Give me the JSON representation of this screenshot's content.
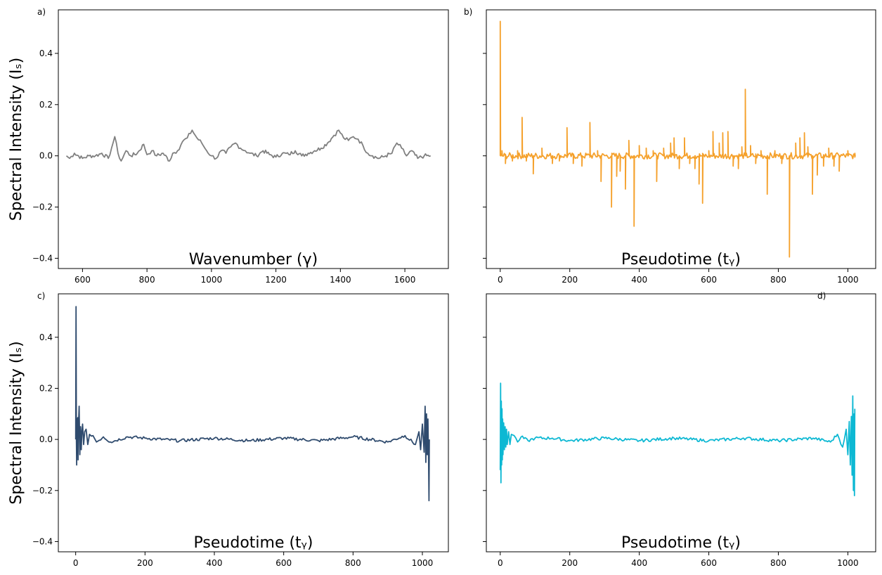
{
  "chart_data": [
    {
      "panel_label": "a)",
      "type": "line",
      "xlabel": "Wavenumber (γ)",
      "ylabel": "Spectral Intensity (Iₛ)",
      "xlim": [
        525,
        1735
      ],
      "ylim": [
        -0.44,
        0.57
      ],
      "xticks": [
        600,
        800,
        1000,
        1200,
        1400,
        1600
      ],
      "yticks": [
        -0.4,
        -0.2,
        0.0,
        0.2,
        0.4
      ],
      "series": [
        {
          "color": "#808080",
          "x": [
            550,
            560,
            575,
            600,
            620,
            640,
            660,
            680,
            690,
            700,
            710,
            720,
            735,
            750,
            770,
            790,
            800,
            815,
            830,
            850,
            870,
            880,
            895,
            910,
            925,
            940,
            955,
            970,
            985,
            1000,
            1015,
            1030,
            1045,
            1060,
            1075,
            1090,
            1105,
            1120,
            1140,
            1160,
            1180,
            1200,
            1220,
            1240,
            1260,
            1280,
            1300,
            1320,
            1340,
            1360,
            1380,
            1395,
            1410,
            1425,
            1440,
            1455,
            1470,
            1485,
            1500,
            1520,
            1540,
            1560,
            1575,
            1590,
            1605,
            1620,
            1640,
            1660,
            1680
          ],
          "y": [
            0.0,
            -0.01,
            0.01,
            -0.01,
            0.0,
            0.0,
            0.01,
            -0.01,
            0.03,
            0.075,
            0.01,
            -0.02,
            0.02,
            0.0,
            0.01,
            0.045,
            0.005,
            0.02,
            0.0,
            0.01,
            -0.02,
            0.01,
            0.02,
            0.055,
            0.07,
            0.1,
            0.07,
            0.05,
            0.02,
            0.0,
            -0.01,
            0.02,
            0.01,
            0.035,
            0.05,
            0.03,
            0.02,
            0.01,
            0.0,
            0.02,
            0.005,
            -0.005,
            0.01,
            0.005,
            0.02,
            0.0,
            0.01,
            0.02,
            0.03,
            0.05,
            0.08,
            0.1,
            0.07,
            0.06,
            0.075,
            0.065,
            0.04,
            0.01,
            0.0,
            -0.01,
            0.0,
            0.01,
            0.05,
            0.03,
            0.0,
            0.02,
            -0.01,
            0.0,
            0.0
          ]
        }
      ]
    },
    {
      "panel_label": "b)",
      "type": "line",
      "xlabel": "Pseudotime (tᵧ)",
      "ylabel": "",
      "xlim": [
        -40,
        1080
      ],
      "ylim": [
        -0.44,
        0.57
      ],
      "xticks": [
        0,
        200,
        400,
        600,
        800,
        1000
      ],
      "yticks": [
        -0.4,
        -0.2,
        0.0,
        0.2,
        0.4
      ],
      "series": [
        {
          "color": "#f5a12c",
          "baseline": [
            0.0,
            0.012
          ],
          "spikes": [
            [
              0,
              0.525
            ],
            [
              5,
              0.02
            ],
            [
              15,
              -0.03
            ],
            [
              35,
              -0.02
            ],
            [
              50,
              0.02
            ],
            [
              63,
              0.15
            ],
            [
              75,
              -0.02
            ],
            [
              95,
              -0.07
            ],
            [
              120,
              0.03
            ],
            [
              150,
              -0.03
            ],
            [
              170,
              -0.02
            ],
            [
              192,
              0.11
            ],
            [
              210,
              -0.03
            ],
            [
              235,
              -0.04
            ],
            [
              258,
              0.13
            ],
            [
              280,
              0.02
            ],
            [
              290,
              -0.1
            ],
            [
              320,
              -0.2
            ],
            [
              335,
              -0.08
            ],
            [
              345,
              -0.06
            ],
            [
              360,
              -0.13
            ],
            [
              370,
              0.06
            ],
            [
              385,
              -0.275
            ],
            [
              400,
              0.04
            ],
            [
              420,
              0.03
            ],
            [
              440,
              0.02
            ],
            [
              450,
              -0.1
            ],
            [
              470,
              0.03
            ],
            [
              490,
              0.05
            ],
            [
              500,
              0.07
            ],
            [
              515,
              -0.05
            ],
            [
              530,
              0.07
            ],
            [
              545,
              -0.03
            ],
            [
              560,
              -0.05
            ],
            [
              572,
              -0.11
            ],
            [
              582,
              -0.185
            ],
            [
              600,
              0.02
            ],
            [
              612,
              0.095
            ],
            [
              630,
              0.05
            ],
            [
              640,
              0.09
            ],
            [
              655,
              0.095
            ],
            [
              670,
              -0.04
            ],
            [
              685,
              -0.05
            ],
            [
              695,
              0.035
            ],
            [
              705,
              0.26
            ],
            [
              720,
              0.04
            ],
            [
              735,
              -0.03
            ],
            [
              750,
              0.02
            ],
            [
              768,
              -0.15
            ],
            [
              790,
              0.02
            ],
            [
              810,
              -0.03
            ],
            [
              832,
              -0.395
            ],
            [
              850,
              0.05
            ],
            [
              862,
              0.07
            ],
            [
              875,
              0.09
            ],
            [
              885,
              0.035
            ],
            [
              898,
              -0.15
            ],
            [
              912,
              -0.075
            ],
            [
              930,
              -0.04
            ],
            [
              945,
              0.03
            ],
            [
              960,
              -0.04
            ],
            [
              975,
              -0.06
            ],
            [
              1000,
              0.02
            ],
            [
              1020,
              -0.005
            ]
          ]
        }
      ]
    },
    {
      "panel_label": "c)",
      "type": "line",
      "xlabel": "Pseudotime (tᵧ)",
      "ylabel": "Spectral Intensity (Iₛ)",
      "xlim": [
        -50,
        1075
      ],
      "ylim": [
        -0.44,
        0.57
      ],
      "xticks": [
        0,
        200,
        400,
        600,
        800,
        1000
      ],
      "yticks": [
        -0.4,
        -0.2,
        0.0,
        0.2,
        0.4
      ],
      "series": [
        {
          "color": "#2f4b6e",
          "x": [
            0,
            1,
            2,
            3,
            4,
            5,
            6,
            7,
            8,
            10,
            12,
            14,
            16,
            18,
            20,
            23,
            26,
            30,
            35,
            40,
            50,
            60,
            80,
            100,
            150,
            200,
            300,
            400,
            500,
            600,
            700,
            800,
            900,
            950,
            980,
            990,
            995,
            1000,
            1005,
            1008,
            1010,
            1012,
            1014,
            1016,
            1018,
            1019,
            1020
          ],
          "y": [
            0.0,
            0.52,
            0.0,
            -0.1,
            0.08,
            -0.05,
            0.085,
            -0.08,
            0.05,
            0.13,
            -0.06,
            0.05,
            -0.04,
            0.03,
            0.06,
            -0.02,
            0.03,
            0.04,
            -0.02,
            0.02,
            0.015,
            -0.01,
            0.01,
            -0.01,
            0.01,
            0.005,
            -0.005,
            0.005,
            -0.005,
            0.005,
            -0.005,
            0.01,
            -0.01,
            0.015,
            -0.02,
            0.03,
            -0.04,
            0.06,
            -0.05,
            0.13,
            -0.09,
            0.1,
            -0.06,
            0.08,
            -0.1,
            -0.24,
            0.0
          ]
        }
      ]
    },
    {
      "panel_label": "d)",
      "type": "line",
      "xlabel": "Pseudotime (tᵧ)",
      "ylabel": "",
      "xlim": [
        -40,
        1080
      ],
      "ylim": [
        -0.44,
        0.57
      ],
      "xticks": [
        0,
        200,
        400,
        600,
        800,
        1000
      ],
      "yticks": [
        -0.4,
        -0.2,
        0.0,
        0.2,
        0.4
      ],
      "series": [
        {
          "color": "#0db8d3",
          "x": [
            0,
            1,
            2,
            3,
            4,
            5,
            6,
            7,
            8,
            10,
            12,
            14,
            16,
            18,
            20,
            24,
            28,
            32,
            40,
            50,
            60,
            80,
            100,
            150,
            200,
            300,
            400,
            500,
            600,
            700,
            800,
            900,
            950,
            970,
            985,
            995,
            1000,
            1004,
            1007,
            1010,
            1012,
            1014,
            1016,
            1018,
            1019,
            1020
          ],
          "y": [
            -0.12,
            0.22,
            -0.17,
            0.15,
            -0.1,
            0.12,
            -0.08,
            0.08,
            -0.06,
            0.065,
            -0.04,
            0.05,
            -0.03,
            0.04,
            -0.02,
            0.03,
            -0.02,
            0.02,
            0.015,
            -0.01,
            0.01,
            -0.005,
            0.005,
            0.005,
            -0.005,
            0.005,
            -0.005,
            0.005,
            -0.005,
            0.005,
            -0.005,
            0.005,
            -0.01,
            0.02,
            -0.03,
            0.04,
            -0.06,
            0.07,
            -0.1,
            0.09,
            -0.14,
            0.17,
            -0.2,
            0.1,
            -0.22,
            0.12
          ]
        }
      ]
    }
  ]
}
